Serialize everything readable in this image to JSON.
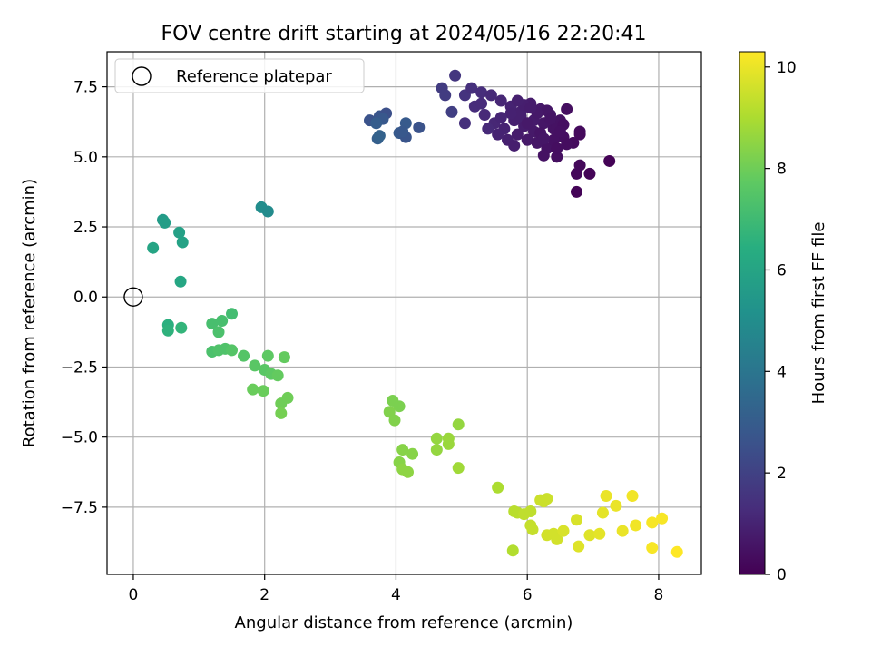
{
  "chart_data": {
    "type": "scatter",
    "title": "FOV centre drift starting at 2024/05/16 22:20:41",
    "xlabel": "Angular distance from reference (arcmin)",
    "ylabel": "Rotation from reference (arcmin)",
    "xlim": [
      -0.4,
      8.65
    ],
    "ylim": [
      -9.9,
      8.75
    ],
    "xticks": [
      0,
      2,
      4,
      6,
      8
    ],
    "xtick_labels": [
      "0",
      "2",
      "4",
      "6",
      "8"
    ],
    "yticks": [
      -7.5,
      -5.0,
      -2.5,
      0.0,
      2.5,
      5.0,
      7.5
    ],
    "ytick_labels": [
      "−7.5",
      "−5.0",
      "−2.5",
      "0.0",
      "2.5",
      "5.0",
      "7.5"
    ],
    "grid": true,
    "legend": {
      "location": "upper-left",
      "entries": [
        "Reference platepar"
      ]
    },
    "colorbar": {
      "label": "Hours from first FF file",
      "colormap": "viridis",
      "range": [
        0,
        10.3
      ],
      "ticks": [
        0,
        2,
        4,
        6,
        8,
        10
      ],
      "tick_labels": [
        "0",
        "2",
        "4",
        "6",
        "8",
        "10"
      ]
    },
    "reference": {
      "x": 0,
      "y": 0
    },
    "points": [
      [
        4.9,
        7.9,
        1.6
      ],
      [
        4.7,
        7.45,
        1.8
      ],
      [
        4.75,
        7.2,
        1.8
      ],
      [
        4.85,
        6.6,
        1.9
      ],
      [
        5.05,
        7.2,
        1.5
      ],
      [
        5.15,
        7.45,
        1.4
      ],
      [
        5.3,
        7.3,
        1.3
      ],
      [
        5.45,
        7.2,
        1.2
      ],
      [
        5.6,
        7.0,
        1.1
      ],
      [
        5.75,
        6.8,
        1.0
      ],
      [
        5.9,
        6.6,
        0.9
      ],
      [
        6.05,
        6.9,
        0.8
      ],
      [
        6.2,
        6.7,
        0.7
      ],
      [
        6.35,
        6.5,
        0.6
      ],
      [
        6.5,
        6.3,
        0.5
      ],
      [
        6.6,
        6.7,
        0.4
      ],
      [
        6.8,
        5.9,
        0.3
      ],
      [
        5.2,
        6.8,
        1.3
      ],
      [
        5.35,
        6.5,
        1.2
      ],
      [
        5.5,
        6.2,
        1.1
      ],
      [
        5.65,
        6.0,
        1.0
      ],
      [
        5.8,
        6.3,
        0.9
      ],
      [
        5.95,
        6.1,
        0.8
      ],
      [
        6.1,
        5.9,
        0.7
      ],
      [
        6.25,
        6.2,
        0.6
      ],
      [
        6.4,
        6.0,
        0.5
      ],
      [
        6.55,
        5.7,
        0.4
      ],
      [
        6.7,
        5.5,
        0.3
      ],
      [
        5.55,
        5.8,
        1.0
      ],
      [
        5.7,
        5.6,
        0.9
      ],
      [
        5.85,
        5.8,
        0.8
      ],
      [
        6.0,
        5.6,
        0.7
      ],
      [
        6.15,
        5.5,
        0.6
      ],
      [
        6.3,
        5.3,
        0.5
      ],
      [
        6.45,
        5.0,
        0.4
      ],
      [
        6.75,
        4.4,
        0.2
      ],
      [
        6.8,
        4.7,
        0.2
      ],
      [
        6.95,
        4.4,
        0.1
      ],
      [
        6.75,
        3.75,
        0.1
      ],
      [
        7.25,
        4.85,
        0.05
      ],
      [
        5.05,
        6.2,
        1.4
      ],
      [
        5.4,
        6.0,
        1.2
      ],
      [
        5.9,
        6.45,
        0.9
      ],
      [
        6.1,
        6.3,
        0.75
      ],
      [
        6.3,
        6.65,
        0.6
      ],
      [
        6.45,
        6.05,
        0.5
      ],
      [
        6.6,
        5.45,
        0.35
      ],
      [
        6.4,
        5.6,
        0.45
      ],
      [
        6.2,
        5.85,
        0.55
      ],
      [
        6.0,
        6.2,
        0.7
      ],
      [
        5.75,
        6.55,
        0.95
      ],
      [
        5.95,
        6.85,
        0.85
      ],
      [
        6.15,
        6.55,
        0.7
      ],
      [
        6.35,
        6.35,
        0.55
      ],
      [
        6.55,
        6.15,
        0.42
      ],
      [
        6.8,
        5.8,
        0.25
      ],
      [
        6.45,
        5.3,
        0.38
      ],
      [
        6.25,
        5.05,
        0.5
      ],
      [
        5.8,
        5.4,
        0.85
      ],
      [
        5.6,
        6.4,
        1.05
      ],
      [
        5.3,
        6.9,
        1.25
      ],
      [
        5.85,
        7.0,
        0.9
      ],
      [
        6.05,
        6.75,
        0.78
      ],
      [
        6.25,
        5.65,
        0.6
      ],
      [
        6.5,
        5.9,
        0.45
      ],
      [
        3.6,
        6.3,
        2.6
      ],
      [
        3.75,
        6.45,
        2.7
      ],
      [
        3.85,
        6.55,
        2.5
      ],
      [
        3.8,
        6.35,
        2.8
      ],
      [
        3.7,
        6.2,
        3.0
      ],
      [
        3.72,
        5.65,
        3.1
      ],
      [
        3.75,
        5.75,
        3.2
      ],
      [
        4.05,
        5.85,
        2.9
      ],
      [
        4.15,
        6.2,
        2.9
      ],
      [
        4.15,
        5.7,
        2.7
      ],
      [
        4.35,
        6.05,
        2.6
      ],
      [
        4.1,
        5.9,
        2.8
      ],
      [
        1.95,
        3.2,
        5.0
      ],
      [
        2.05,
        3.05,
        4.9
      ],
      [
        0.45,
        2.75,
        5.6
      ],
      [
        0.48,
        2.65,
        5.7
      ],
      [
        0.7,
        2.3,
        5.8
      ],
      [
        0.75,
        1.95,
        5.9
      ],
      [
        0.3,
        1.75,
        6.0
      ],
      [
        0.72,
        0.55,
        6.1
      ],
      [
        0.53,
        -1.0,
        6.5
      ],
      [
        0.53,
        -1.2,
        6.6
      ],
      [
        0.73,
        -1.1,
        6.7
      ],
      [
        1.5,
        -0.6,
        7.1
      ],
      [
        1.35,
        -0.85,
        7.2
      ],
      [
        1.2,
        -0.95,
        7.2
      ],
      [
        1.3,
        -1.25,
        7.3
      ],
      [
        1.2,
        -1.95,
        7.3
      ],
      [
        1.3,
        -1.9,
        7.4
      ],
      [
        1.4,
        -1.85,
        7.4
      ],
      [
        1.5,
        -1.9,
        7.5
      ],
      [
        1.68,
        -2.1,
        7.5
      ],
      [
        1.85,
        -2.45,
        7.6
      ],
      [
        2.0,
        -2.6,
        7.6
      ],
      [
        2.05,
        -2.1,
        7.7
      ],
      [
        2.1,
        -2.75,
        7.7
      ],
      [
        2.2,
        -2.8,
        7.8
      ],
      [
        2.3,
        -2.15,
        7.8
      ],
      [
        1.82,
        -3.3,
        7.9
      ],
      [
        1.98,
        -3.35,
        7.9
      ],
      [
        2.25,
        -3.8,
        8.0
      ],
      [
        2.35,
        -3.6,
        8.0
      ],
      [
        2.25,
        -4.15,
        8.1
      ],
      [
        3.95,
        -3.7,
        8.2
      ],
      [
        4.05,
        -3.9,
        8.2
      ],
      [
        3.9,
        -4.1,
        8.3
      ],
      [
        3.98,
        -4.4,
        8.3
      ],
      [
        4.1,
        -5.45,
        8.4
      ],
      [
        4.05,
        -5.9,
        8.4
      ],
      [
        4.1,
        -6.15,
        8.5
      ],
      [
        4.18,
        -6.25,
        8.5
      ],
      [
        4.25,
        -5.6,
        8.4
      ],
      [
        4.62,
        -5.05,
        8.6
      ],
      [
        4.62,
        -5.45,
        8.6
      ],
      [
        4.8,
        -5.05,
        8.7
      ],
      [
        4.8,
        -5.25,
        8.7
      ],
      [
        4.95,
        -4.55,
        8.6
      ],
      [
        4.95,
        -6.1,
        8.8
      ],
      [
        5.55,
        -6.8,
        9.0
      ],
      [
        5.8,
        -7.65,
        9.2
      ],
      [
        5.85,
        -7.7,
        9.2
      ],
      [
        5.95,
        -7.75,
        9.3
      ],
      [
        6.05,
        -7.65,
        9.3
      ],
      [
        6.05,
        -8.15,
        9.4
      ],
      [
        6.08,
        -8.3,
        9.4
      ],
      [
        6.2,
        -7.25,
        9.5
      ],
      [
        6.25,
        -7.3,
        9.5
      ],
      [
        6.3,
        -7.2,
        9.5
      ],
      [
        6.3,
        -8.5,
        9.6
      ],
      [
        6.4,
        -8.45,
        9.6
      ],
      [
        6.45,
        -8.65,
        9.6
      ],
      [
        6.55,
        -8.35,
        9.7
      ],
      [
        6.75,
        -7.95,
        9.7
      ],
      [
        6.78,
        -8.9,
        9.8
      ],
      [
        6.95,
        -8.5,
        9.8
      ],
      [
        7.1,
        -8.45,
        9.9
      ],
      [
        7.15,
        -7.7,
        9.9
      ],
      [
        7.2,
        -7.1,
        10.0
      ],
      [
        7.35,
        -7.45,
        10.0
      ],
      [
        7.45,
        -8.35,
        10.0
      ],
      [
        7.6,
        -7.1,
        10.1
      ],
      [
        7.65,
        -8.15,
        10.1
      ],
      [
        7.9,
        -8.05,
        10.2
      ],
      [
        8.05,
        -7.9,
        10.2
      ],
      [
        7.9,
        -8.95,
        10.2
      ],
      [
        8.28,
        -9.1,
        10.3
      ],
      [
        5.78,
        -9.05,
        9.1
      ]
    ]
  }
}
